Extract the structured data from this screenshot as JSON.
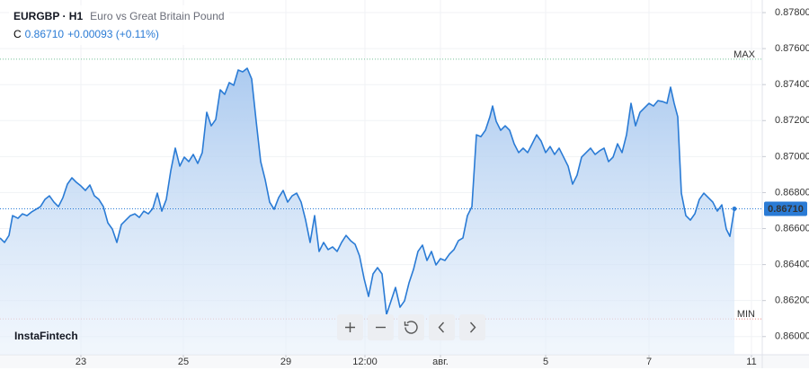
{
  "chart_data": {
    "type": "area",
    "symbol": "EURGBP · H1",
    "description": "Euro vs Great Britain Pound",
    "close_prefix": "C",
    "close": "0.86710",
    "change": "+0.00093 (+0.11%)",
    "brand": "InstaFintech",
    "color": "#2a7bd5",
    "grid": true,
    "max_line": {
      "label": "MAX",
      "value": 0.87541,
      "color": "#3aa86b"
    },
    "min_line": {
      "label": "MIN",
      "value": 0.86098,
      "color": "#e0524d"
    },
    "x": [
      0,
      2,
      4,
      5.6,
      8,
      10,
      12,
      14,
      16,
      18,
      20,
      22,
      24,
      26,
      28,
      30,
      32,
      34,
      36,
      38,
      40,
      42,
      44,
      46,
      48,
      50,
      52,
      54,
      56,
      58,
      60,
      62,
      64,
      66,
      68,
      70,
      72,
      74,
      76,
      78,
      80,
      82,
      84,
      86,
      88,
      90,
      92,
      94,
      96,
      98,
      100,
      102,
      104,
      106,
      108,
      110,
      112,
      114,
      116,
      118,
      120,
      122,
      124,
      126,
      128,
      130,
      132,
      134,
      136,
      138,
      140,
      142,
      144,
      146,
      148,
      150,
      152,
      154,
      156,
      158,
      160,
      162,
      164,
      166,
      168,
      170,
      172,
      174,
      176,
      178,
      180,
      182,
      184,
      186,
      188,
      190,
      192,
      194,
      196,
      198,
      200,
      202,
      204,
      206,
      208,
      210,
      212,
      214,
      216,
      218,
      219.2,
      220.8,
      222.8,
      224.8,
      226.8,
      228.8,
      230.8,
      232.8,
      234.8,
      236.8,
      238.8,
      240.8,
      242.8,
      244.8,
      246.8,
      248.8,
      250.8,
      252.8,
      254.8,
      256.8,
      258.8,
      260.8,
      262.8,
      264.8,
      266.8,
      268.8,
      270.8,
      272.8,
      274.8,
      276.8,
      278.8,
      280.8,
      282.8,
      284.8,
      286.8,
      288.8,
      290.8,
      292.8,
      294.8,
      296.8,
      298.4,
      300,
      301.6,
      303.2,
      305.2,
      307.2,
      309.2,
      311.2,
      313.2,
      315.2,
      317.2,
      319.2,
      321.2,
      323.2,
      324.8,
      326.8
    ],
    "values": [
      0.86548,
      0.86523,
      0.86562,
      0.86672,
      0.86657,
      0.86682,
      0.86672,
      0.86692,
      0.86707,
      0.86722,
      0.86762,
      0.86782,
      0.86747,
      0.86722,
      0.86772,
      0.86847,
      0.86882,
      0.86857,
      0.86837,
      0.86812,
      0.86842,
      0.86782,
      0.86762,
      0.86722,
      0.86632,
      0.86597,
      0.86523,
      0.86622,
      0.86647,
      0.86672,
      0.86682,
      0.86662,
      0.86697,
      0.86682,
      0.86712,
      0.86797,
      0.86697,
      0.86762,
      0.86922,
      0.87047,
      0.86947,
      0.86997,
      0.86972,
      0.87012,
      0.86962,
      0.87022,
      0.87246,
      0.87171,
      0.87206,
      0.87371,
      0.87346,
      0.87411,
      0.87396,
      0.87481,
      0.87471,
      0.87491,
      0.87431,
      0.87196,
      0.86972,
      0.86872,
      0.86747,
      0.86707,
      0.86772,
      0.86812,
      0.86747,
      0.86782,
      0.86797,
      0.86747,
      0.86647,
      0.86523,
      0.86672,
      0.86473,
      0.86523,
      0.86483,
      0.86498,
      0.86473,
      0.86523,
      0.86562,
      0.86533,
      0.86513,
      0.86448,
      0.86323,
      0.86223,
      0.86348,
      0.86383,
      0.86348,
      0.86123,
      0.86198,
      0.86273,
      0.86163,
      0.86198,
      0.86298,
      0.86373,
      0.86473,
      0.86508,
      0.86423,
      0.86473,
      0.86398,
      0.86433,
      0.86423,
      0.86458,
      0.86483,
      0.86533,
      0.86548,
      0.86672,
      0.86722,
      0.87121,
      0.87111,
      0.87146,
      0.87221,
      0.87281,
      0.87196,
      0.87146,
      0.87171,
      0.87146,
      0.87071,
      0.87022,
      0.87047,
      0.87022,
      0.87071,
      0.87121,
      0.87086,
      0.87022,
      0.87056,
      0.87012,
      0.87047,
      0.86997,
      0.86947,
      0.86847,
      0.86897,
      0.86997,
      0.87022,
      0.87047,
      0.87012,
      0.87032,
      0.87047,
      0.86972,
      0.86997,
      0.87071,
      0.87022,
      0.87121,
      0.87296,
      0.87171,
      0.87246,
      0.87271,
      0.87296,
      0.87281,
      0.87311,
      0.87306,
      0.87296,
      0.87386,
      0.87296,
      0.87221,
      0.86797,
      0.86672,
      0.86647,
      0.86682,
      0.86762,
      0.86797,
      0.86772,
      0.86747,
      0.86697,
      0.86732,
      0.86597,
      0.86557,
      0.8671
    ],
    "xlim": [
      0,
      339.2
    ],
    "xticks": [
      {
        "value": 36,
        "label": "23"
      },
      {
        "value": 81.6,
        "label": "25"
      },
      {
        "value": 127.2,
        "label": "29"
      },
      {
        "value": 162.4,
        "label": "12:00"
      },
      {
        "value": 196,
        "label": "авг."
      },
      {
        "value": 242.8,
        "label": "5"
      },
      {
        "value": 288.8,
        "label": "7"
      },
      {
        "value": 334.4,
        "label": "11"
      }
    ],
    "ylim": [
      0.85899,
      0.8787
    ],
    "yticks": [
      {
        "value": 0.878,
        "label": "0.87800"
      },
      {
        "value": 0.876,
        "label": "0.87600"
      },
      {
        "value": 0.874,
        "label": "0.87400"
      },
      {
        "value": 0.872,
        "label": "0.87200"
      },
      {
        "value": 0.87,
        "label": "0.87000"
      },
      {
        "value": 0.868,
        "label": "0.86800"
      },
      {
        "value": 0.866,
        "label": "0.86600"
      },
      {
        "value": 0.864,
        "label": "0.86400"
      },
      {
        "value": 0.862,
        "label": "0.86200"
      },
      {
        "value": 0.86,
        "label": "0.86000"
      }
    ]
  }
}
